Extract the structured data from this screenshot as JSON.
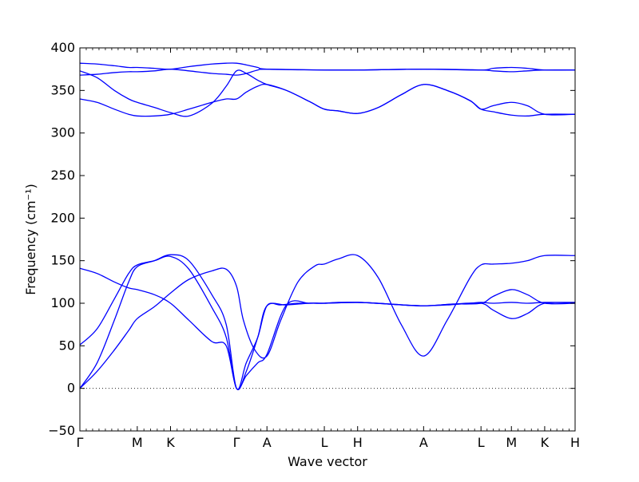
{
  "chart_data": {
    "type": "line",
    "xlabel": "Wave vector",
    "ylabel": "Frequency (cm⁻¹)",
    "ylim": [
      -50,
      400
    ],
    "yticks": [
      -50,
      0,
      50,
      100,
      150,
      200,
      250,
      300,
      350,
      400
    ],
    "zero_line": {
      "y": 0,
      "style": "dotted"
    },
    "color": "#0000ff",
    "kpoints": [
      {
        "label": "Γ",
        "x": 0.0
      },
      {
        "label": "M",
        "x": 1.0
      },
      {
        "label": "K",
        "x": 1.58
      },
      {
        "label": "Γ",
        "x": 2.73
      },
      {
        "label": "A",
        "x": 3.26
      },
      {
        "label": "L",
        "x": 4.26
      },
      {
        "label": "H",
        "x": 4.84
      },
      {
        "label": "A",
        "x": 5.99
      },
      {
        "label": "L",
        "x": 6.99
      },
      {
        "label": "M",
        "x": 7.52
      },
      {
        "label": "K",
        "x": 8.1
      },
      {
        "label": "H",
        "x": 8.63
      }
    ],
    "series": [
      {
        "x": [
          0,
          0.3,
          0.6,
          0.85,
          1.0,
          1.3,
          1.58,
          1.9,
          2.3,
          2.55,
          2.73,
          2.85,
          3.05,
          3.26,
          3.5,
          3.8,
          4.1,
          4.26,
          4.5,
          4.84,
          5.2,
          5.6,
          5.99,
          6.4,
          6.8,
          6.99,
          7.2,
          7.52,
          7.8,
          8.1,
          8.63
        ],
        "y": [
          0,
          20,
          45,
          68,
          82,
          96,
          112,
          128,
          138,
          140,
          120,
          80,
          45,
          38,
          80,
          125,
          144,
          146,
          152,
          156,
          130,
          75,
          38,
          80,
          130,
          145,
          146,
          147,
          150,
          156,
          156
        ]
      },
      {
        "x": [
          0,
          0.3,
          0.6,
          0.85,
          1.0,
          1.3,
          1.58,
          1.9,
          2.3,
          2.55,
          2.73,
          2.9,
          3.1,
          3.26,
          3.6,
          4.0,
          4.26,
          4.84,
          5.4,
          5.99,
          6.5,
          6.99,
          7.2,
          7.52,
          7.8,
          8.1,
          8.63
        ],
        "y": [
          51,
          70,
          105,
          135,
          145,
          150,
          155,
          140,
          95,
          60,
          0,
          20,
          60,
          97,
          98,
          100,
          100,
          101,
          99,
          97,
          99,
          100,
          108,
          116,
          110,
          100,
          100
        ]
      },
      {
        "x": [
          0,
          0.3,
          0.6,
          0.85,
          1.0,
          1.3,
          1.58,
          1.9,
          2.3,
          2.55,
          2.73,
          2.9,
          3.1,
          3.26,
          3.6,
          4.0,
          4.26,
          4.84,
          5.4,
          5.99,
          6.5,
          6.99,
          7.2,
          7.52,
          7.8,
          8.1,
          8.63
        ],
        "y": [
          141,
          135,
          125,
          118,
          116,
          110,
          100,
          80,
          55,
          50,
          0,
          15,
          30,
          40,
          98,
          100,
          100,
          101,
          99,
          97,
          99,
          100,
          92,
          82,
          88,
          100,
          100
        ]
      },
      {
        "x": [
          0,
          0.3,
          0.6,
          0.85,
          1.0,
          1.3,
          1.58,
          1.9,
          2.3,
          2.55,
          2.73,
          2.9,
          3.1,
          3.26,
          3.5,
          3.8,
          4.1,
          4.26,
          4.5,
          4.84,
          5.2,
          5.6,
          5.99,
          6.4,
          6.8,
          6.99,
          7.2,
          7.52,
          7.8,
          8.1,
          8.63
        ],
        "y": [
          0,
          30,
          80,
          125,
          143,
          150,
          157,
          150,
          110,
          75,
          0,
          30,
          60,
          97,
          98,
          100,
          100,
          100,
          101,
          101,
          100,
          98,
          97,
          98,
          100,
          101,
          100,
          101,
          100,
          101,
          101
        ]
      },
      {
        "x": [
          0,
          0.3,
          0.6,
          0.85,
          1.0,
          1.3,
          1.58,
          1.9,
          2.3,
          2.55,
          2.73,
          2.9,
          3.1,
          3.26,
          3.6,
          4.0,
          4.26,
          4.5,
          4.84,
          5.2,
          5.6,
          5.99,
          6.4,
          6.8,
          6.99,
          7.2,
          7.52,
          7.8,
          8.1,
          8.63
        ],
        "y": [
          340,
          336,
          328,
          322,
          320,
          320,
          322,
          328,
          336,
          340,
          340,
          348,
          355,
          357,
          350,
          337,
          328,
          326,
          323,
          330,
          345,
          357,
          350,
          338,
          328,
          332,
          336,
          332,
          322,
          322
        ]
      },
      {
        "x": [
          0,
          0.3,
          0.6,
          0.85,
          1.0,
          1.3,
          1.58,
          1.9,
          2.3,
          2.55,
          2.73,
          2.9,
          3.1,
          3.26,
          3.6,
          4.0,
          4.26,
          4.5,
          4.84,
          5.2,
          5.6,
          5.99,
          6.4,
          6.8,
          6.99,
          7.2,
          7.52,
          7.8,
          8.1,
          8.63
        ],
        "y": [
          373,
          365,
          350,
          340,
          336,
          330,
          324,
          320,
          335,
          355,
          373,
          370,
          362,
          357,
          350,
          337,
          328,
          326,
          323,
          330,
          345,
          357,
          350,
          338,
          328,
          325,
          321,
          320,
          322,
          322
        ]
      },
      {
        "x": [
          0,
          0.3,
          0.6,
          0.85,
          1.0,
          1.3,
          1.58,
          1.9,
          2.3,
          2.55,
          2.73,
          2.9,
          3.1,
          3.26,
          4.26,
          4.84,
          5.99,
          6.99,
          7.2,
          7.52,
          7.8,
          8.1,
          8.63
        ],
        "y": [
          368,
          369,
          371,
          372,
          372,
          373,
          375,
          373,
          370,
          369,
          368,
          370,
          374,
          375,
          374,
          374,
          375,
          374,
          376,
          377,
          376,
          374,
          374
        ]
      },
      {
        "x": [
          0,
          0.3,
          0.6,
          0.85,
          1.0,
          1.3,
          1.58,
          1.9,
          2.3,
          2.55,
          2.73,
          2.9,
          3.1,
          3.26,
          4.26,
          4.84,
          5.99,
          6.99,
          7.2,
          7.52,
          7.8,
          8.1,
          8.63
        ],
        "y": [
          382,
          381,
          379,
          377,
          377,
          376,
          375,
          378,
          381,
          382,
          382,
          380,
          377,
          375,
          374,
          374,
          375,
          374,
          373,
          372,
          373,
          374,
          374
        ]
      }
    ]
  }
}
